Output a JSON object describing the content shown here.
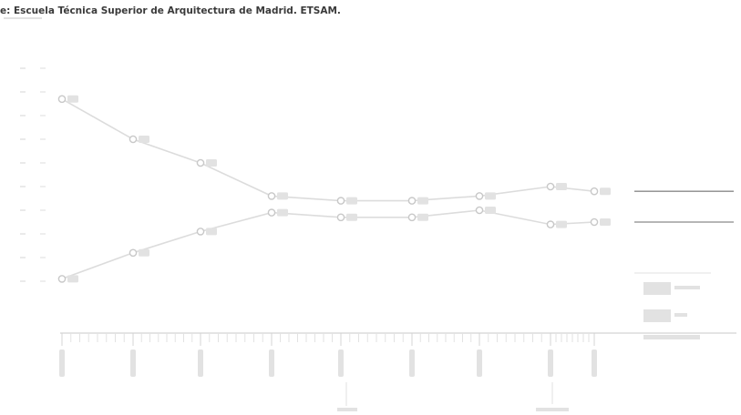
{
  "header": {
    "source_text": "e: Escuela Técnica Superior de Arquitectura de Madrid. ETSAM."
  },
  "colors": {
    "background": "#ffffff",
    "axis": "#d4d4d4",
    "series_line": "#dcdcdc",
    "end_line": "#8a8a8a",
    "marker": "#c8c8c8",
    "faint_label": "#e2e2e2",
    "source_text": "#3a3a3a"
  },
  "chart_data": {
    "type": "line",
    "title": "",
    "xlabel": "",
    "ylabel": "",
    "ylim": [
      0,
      100
    ],
    "grid": false,
    "legend_position": "bottom-right",
    "x": [
      0,
      1,
      2,
      3,
      4,
      5,
      6,
      7,
      8
    ],
    "series": [
      {
        "values": [
          87,
          70,
          60,
          46,
          44,
          44,
          46,
          50,
          48
        ]
      },
      {
        "values": [
          11,
          22,
          31,
          39,
          37,
          37,
          40,
          34,
          35
        ]
      }
    ],
    "minor_ticks_per_interval": 7
  }
}
